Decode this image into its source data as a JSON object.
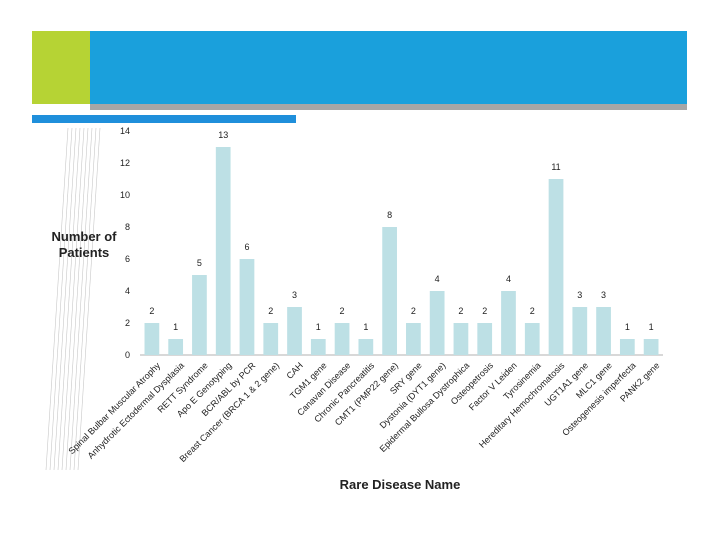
{
  "chart_data": {
    "type": "bar",
    "title": "",
    "xlabel": "Rare Disease Name",
    "ylabel": "Number  of\nPatients",
    "ylim": [
      0,
      14
    ],
    "yticks": [
      0,
      2,
      4,
      6,
      8,
      10,
      12,
      14
    ],
    "grid": false,
    "bar_color": "#bde0e5",
    "categories": [
      "Spinal Bulbar Muscular Atrophy",
      "Anhydrotic Ectodermal Dysplasia",
      "RETT Syndrome",
      "Apo E Genotyping",
      "BCR/ABL by PCR",
      "Breast Cancer (BRCA 1 & 2 gene)",
      "CAH",
      "TGM1 gene",
      "Canavan Disease",
      "Chronic Pancreatitis",
      "CMT1 (PMP22 gene)",
      "SRY gene",
      "Dystonia (DYT1 gene)",
      "Epidermal Bullosa Dystrophica",
      "Osteopetrosis",
      "Factor V Leiden",
      "Tyrosinemia",
      "Hereditary Hemochromatosis",
      "UGT1A1 gene",
      "MLC1 gene",
      "Osteogenesis imperfecta",
      "PANK2 gene"
    ],
    "values": [
      2,
      1,
      5,
      13,
      6,
      2,
      3,
      1,
      2,
      1,
      8,
      2,
      4,
      2,
      2,
      4,
      2,
      11,
      3,
      3,
      1,
      1
    ]
  },
  "colors": {
    "banner_blue": "#1aa0dc",
    "banner_green": "#b6d334",
    "banner_grey": "#a6a6a6",
    "accent_stripe": "#1f8fdb"
  }
}
